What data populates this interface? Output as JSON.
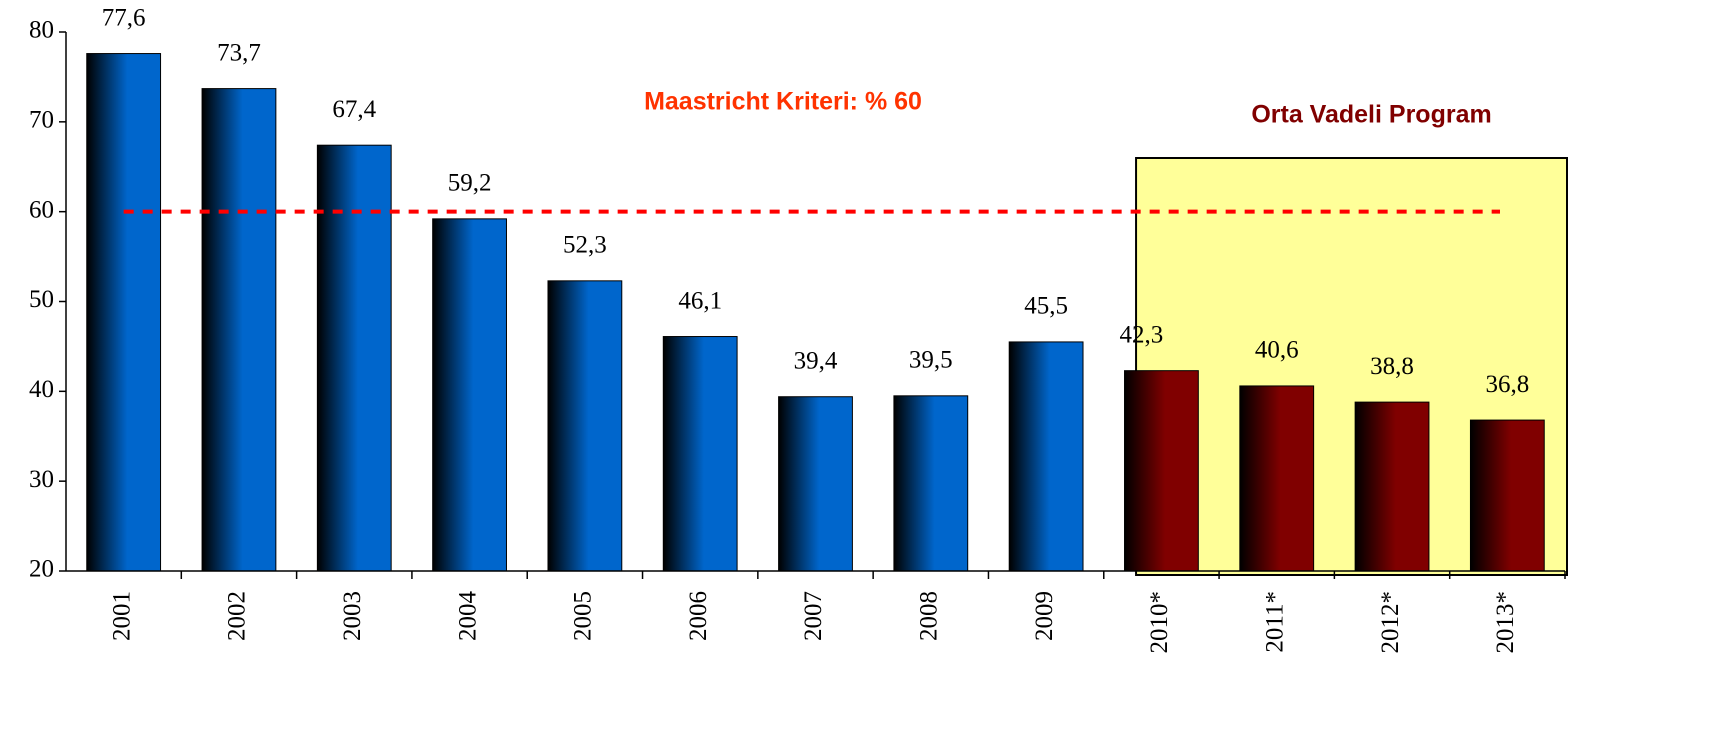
{
  "chart_data": {
    "type": "bar",
    "categories": [
      "2001",
      "2002",
      "2003",
      "2004",
      "2005",
      "2006",
      "2007",
      "2008",
      "2009",
      "2010*",
      "2011*",
      "2012*",
      "2013*"
    ],
    "values": [
      77.6,
      73.7,
      67.4,
      59.2,
      52.3,
      46.1,
      39.4,
      39.5,
      45.5,
      42.3,
      40.6,
      38.8,
      36.8
    ],
    "value_labels": [
      "77,6",
      "73,7",
      "67,4",
      "59,2",
      "52,3",
      "46,1",
      "39,4",
      "39,5",
      "45,5",
      "42,3",
      "40,6",
      "38,8",
      "36,8"
    ],
    "colors": [
      "#0066cc",
      "#0066cc",
      "#0066cc",
      "#0066cc",
      "#0066cc",
      "#0066cc",
      "#0066cc",
      "#0066cc",
      "#0066cc",
      "#800000",
      "#800000",
      "#800000",
      "#800000"
    ],
    "ylim": [
      20,
      80
    ],
    "yticks": [
      20,
      30,
      40,
      50,
      60,
      70,
      80
    ],
    "reference_line": {
      "value": 60,
      "label": "Maastricht Kriteri: % 60",
      "color": "#ff0000",
      "label_color": "#ff3300"
    },
    "highlight": {
      "label": "Orta Vadeli Program",
      "from": "2010*",
      "to": "2013*",
      "color": "#ffff99",
      "label_color": "#800000"
    }
  }
}
